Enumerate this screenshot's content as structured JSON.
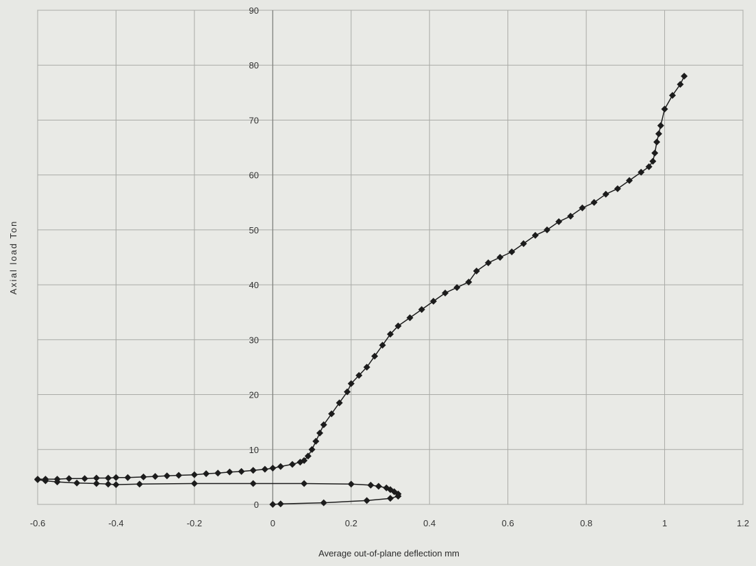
{
  "chart_data": {
    "type": "scatter",
    "title": "",
    "xlabel": "Average out-of-plane deflection  mm",
    "ylabel": "Axial load  Ton",
    "xlim": [
      -0.6,
      1.2
    ],
    "ylim": [
      0,
      90
    ],
    "xticks": [
      -0.6,
      -0.4,
      -0.2,
      0,
      0.2,
      0.4,
      0.6,
      0.8,
      1,
      1.2
    ],
    "yticks": [
      0,
      10,
      20,
      30,
      40,
      50,
      60,
      70,
      80,
      90
    ],
    "xtick_labels": [
      "-0.6",
      "-0.4",
      "-0.2",
      "0",
      "0.2",
      "0.4",
      "0.6",
      "0.8",
      "1",
      "1.2"
    ],
    "ytick_labels": [
      "0",
      "10",
      "20",
      "30",
      "40",
      "50",
      "60",
      "70",
      "80",
      "90"
    ],
    "grid": true,
    "legend": "none",
    "colors": {
      "series": "#1c1c1c",
      "grid": "#a9aaa6",
      "background": "#e7e8e4"
    },
    "series": [
      {
        "marker": "diamond",
        "x": [
          0.0,
          0.02,
          0.13,
          0.24,
          0.3,
          0.32,
          0.32,
          0.31,
          0.3,
          0.29,
          0.27,
          0.25,
          0.2,
          0.08,
          -0.05,
          -0.2,
          -0.34,
          -0.4,
          -0.42,
          -0.45,
          -0.5,
          -0.55,
          -0.58,
          -0.6,
          -0.6,
          -0.58,
          -0.55,
          -0.52,
          -0.48,
          -0.45,
          -0.42,
          -0.4,
          -0.37,
          -0.33,
          -0.3,
          -0.27,
          -0.24,
          -0.2,
          -0.17,
          -0.14,
          -0.11,
          -0.08,
          -0.05,
          -0.02,
          0.0,
          0.02,
          0.05,
          0.07,
          0.08,
          0.09,
          0.1,
          0.11,
          0.12,
          0.13,
          0.15,
          0.17,
          0.19,
          0.2,
          0.22,
          0.24,
          0.26,
          0.28,
          0.3,
          0.32,
          0.35,
          0.38,
          0.41,
          0.44,
          0.47,
          0.5,
          0.52,
          0.55,
          0.58,
          0.61,
          0.64,
          0.67,
          0.7,
          0.73,
          0.76,
          0.79,
          0.82,
          0.85,
          0.88,
          0.91,
          0.94,
          0.96,
          0.97,
          0.975,
          0.98,
          0.985,
          0.99,
          1.0,
          1.02,
          1.04,
          1.05
        ],
        "y": [
          0.0,
          0.1,
          0.3,
          0.7,
          1.1,
          1.5,
          1.9,
          2.3,
          2.7,
          3.0,
          3.3,
          3.5,
          3.7,
          3.8,
          3.8,
          3.8,
          3.7,
          3.6,
          3.7,
          3.8,
          3.9,
          4.1,
          4.3,
          4.5,
          4.6,
          4.6,
          4.6,
          4.7,
          4.7,
          4.8,
          4.8,
          4.9,
          4.9,
          5.0,
          5.1,
          5.2,
          5.3,
          5.4,
          5.6,
          5.7,
          5.9,
          6.0,
          6.2,
          6.4,
          6.6,
          6.9,
          7.3,
          7.7,
          8.0,
          8.8,
          10.0,
          11.5,
          13.0,
          14.5,
          16.5,
          18.5,
          20.5,
          22.0,
          23.5,
          25.0,
          27.0,
          29.0,
          31.0,
          32.5,
          34.0,
          35.5,
          37.0,
          38.5,
          39.5,
          40.5,
          42.5,
          44.0,
          45.0,
          46.0,
          47.5,
          49.0,
          50.0,
          51.5,
          52.5,
          54.0,
          55.0,
          56.5,
          57.5,
          59.0,
          60.5,
          61.5,
          62.5,
          64.0,
          66.0,
          67.5,
          69.0,
          72.0,
          74.5,
          76.5,
          78.0
        ]
      }
    ]
  }
}
